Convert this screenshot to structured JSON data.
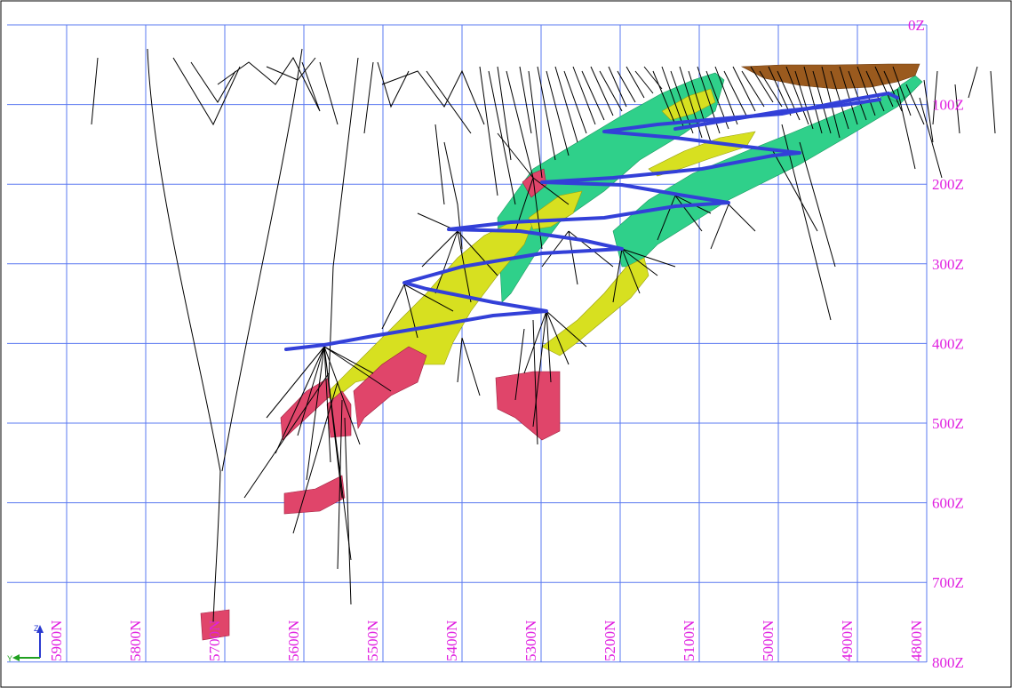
{
  "section": {
    "elevation_labels": [
      "0Z",
      "100Z",
      "200Z",
      "300Z",
      "400Z",
      "500Z",
      "600Z",
      "700Z",
      "800Z"
    ],
    "northing_labels": [
      "5900N",
      "5800N",
      "5700N",
      "5600N",
      "5500N",
      "5400N",
      "5300N",
      "5200N",
      "5100N",
      "5000N",
      "4900N",
      "4800N"
    ],
    "axis_triad": {
      "up": "Z",
      "left": "Y"
    }
  },
  "colors": {
    "background": "#ffffff",
    "grid": "#5a78f0",
    "labels": "#e020e0",
    "drillholes": "#000000",
    "zone_green": "#2fd08a",
    "zone_yellow": "#d7e020",
    "zone_red": "#e0456a",
    "zone_brown": "#9a5a1e",
    "workings": "#3340d8"
  }
}
